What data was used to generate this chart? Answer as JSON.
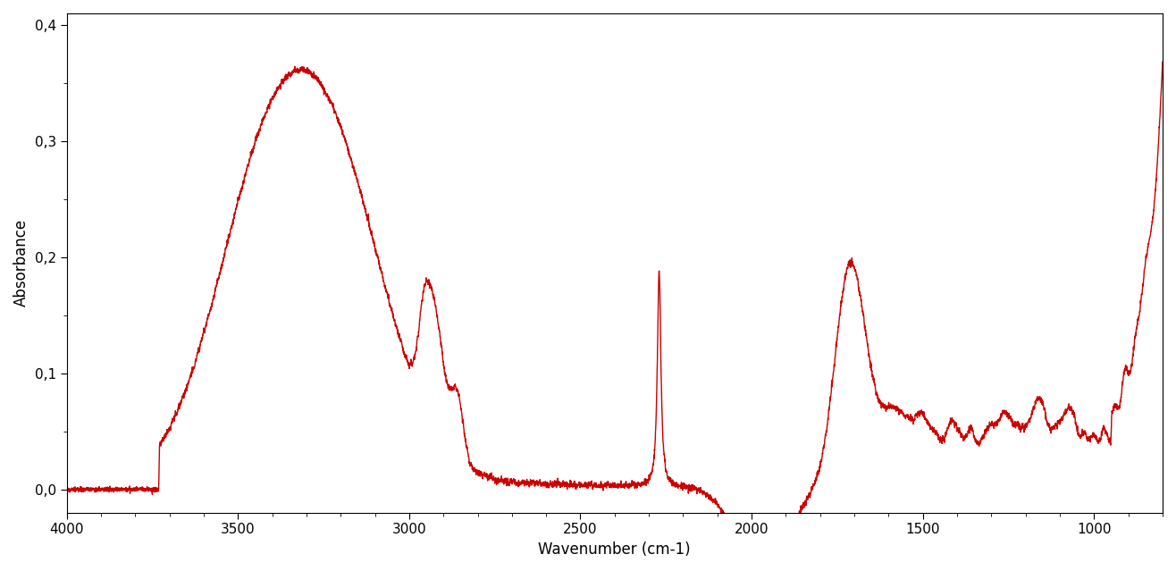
{
  "xlabel": "Wavenumber (cm-1)",
  "ylabel": "Absorbance",
  "xlim": [
    800,
    4000
  ],
  "ylim": [
    -0.02,
    0.41
  ],
  "xticks": [
    4000,
    3500,
    3000,
    2500,
    2000,
    1500,
    1000
  ],
  "yticks": [
    0.0,
    0.1,
    0.2,
    0.3,
    0.4
  ],
  "ytick_labels": [
    "0,0",
    "0,1",
    "0,2",
    "0,3",
    "0,4"
  ],
  "line_color": "#cc0000",
  "line_width": 1.0,
  "background_color": "#ffffff",
  "figsize": [
    13.16,
    6.39
  ],
  "dpi": 100
}
